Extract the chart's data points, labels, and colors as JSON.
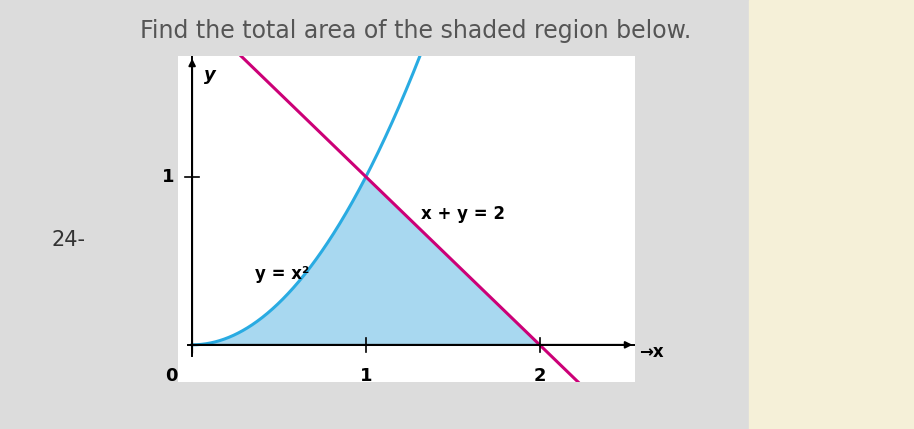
{
  "title": "Find the total area of the shaded region below.",
  "title_fontsize": 17,
  "title_color": "#555555",
  "background_color": "#dcdcdc",
  "right_strip_color": "#f5f0d8",
  "plot_bg_color": "#ffffff",
  "label_24": "24-",
  "curve_color": "#29abe2",
  "line_color": "#cc0077",
  "shade_color": "#a8d8f0",
  "shade_alpha": 1.0,
  "annotation_parabola": "y = x²",
  "annotation_line": "x + y = 2",
  "xlim": [
    -0.08,
    2.55
  ],
  "ylim": [
    -0.22,
    1.72
  ],
  "line_width": 2.2,
  "tick_fontsize": 13
}
